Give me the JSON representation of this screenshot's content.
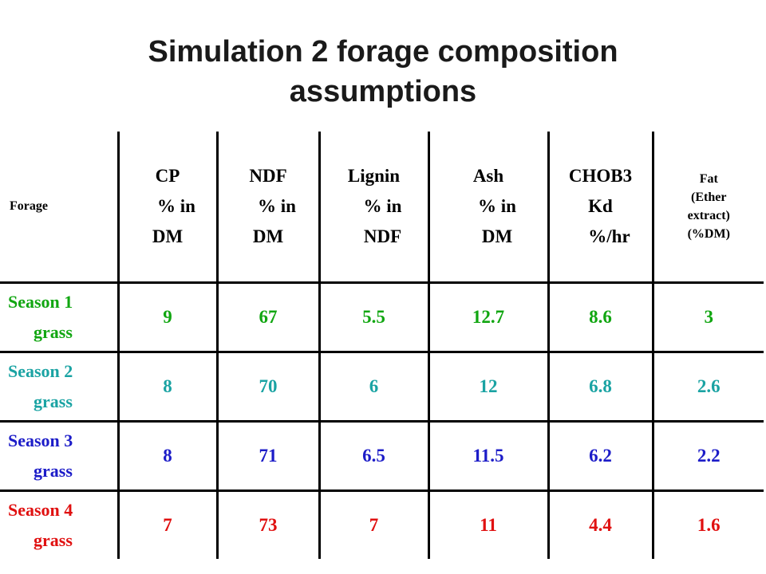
{
  "title": {
    "line1": "Simulation 2 forage composition",
    "line2": "assumptions"
  },
  "table": {
    "headers": {
      "forage": "Forage",
      "cp": [
        "CP",
        "% in",
        "DM"
      ],
      "ndf": [
        "NDF",
        "% in",
        "DM"
      ],
      "lignin": [
        "Lignin",
        "% in",
        "NDF"
      ],
      "ash": [
        "Ash",
        "% in",
        "DM"
      ],
      "chob3": [
        "CHOB3",
        "Kd",
        "%/hr"
      ],
      "fat": [
        "Fat",
        "(Ether",
        "extract)",
        "(%DM)"
      ]
    },
    "rows": [
      {
        "season": [
          "Season 1",
          "grass"
        ],
        "color": "#11a611",
        "values": [
          "9",
          "67",
          "5.5",
          "12.7",
          "8.6",
          "3"
        ]
      },
      {
        "season": [
          "Season 2",
          "grass"
        ],
        "color": "#1aa3a3",
        "values": [
          "8",
          "70",
          "6",
          "12",
          "6.8",
          "2.6"
        ]
      },
      {
        "season": [
          "Season 3",
          "grass"
        ],
        "color": "#1c1cc8",
        "values": [
          "8",
          "71",
          "6.5",
          "11.5",
          "6.2",
          "2.2"
        ]
      },
      {
        "season": [
          "Season 4",
          "grass"
        ],
        "color": "#e01010",
        "values": [
          "7",
          "73",
          "7",
          "11",
          "4.4",
          "1.6"
        ]
      }
    ]
  }
}
